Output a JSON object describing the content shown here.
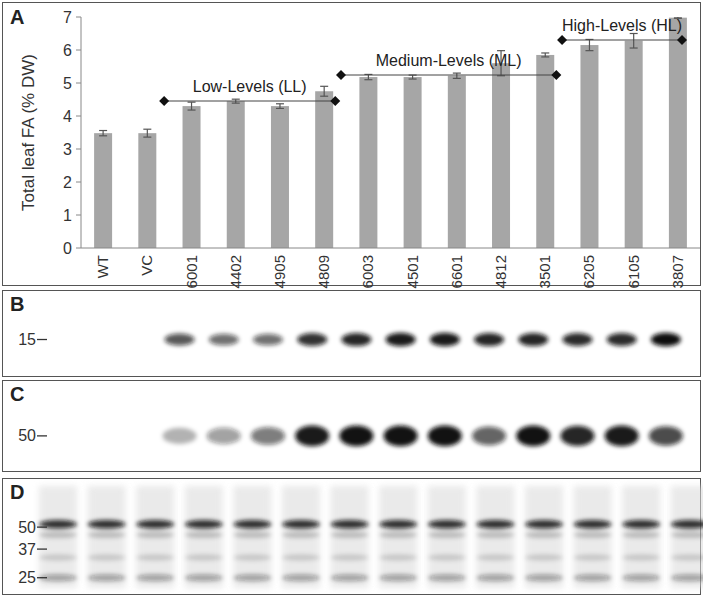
{
  "chart_data": {
    "type": "bar",
    "title": "A",
    "ylabel": "Total leaf FA (% DW)",
    "categories": [
      "WT",
      "VC",
      "6001",
      "4402",
      "4905",
      "4809",
      "6003",
      "4501",
      "6601",
      "4812",
      "3501",
      "6205",
      "6105",
      "3807"
    ],
    "values": [
      3.48,
      3.48,
      4.3,
      4.45,
      4.3,
      4.75,
      5.18,
      5.18,
      5.22,
      5.6,
      5.85,
      6.15,
      6.28,
      6.98
    ],
    "errors": [
      0.08,
      0.12,
      0.12,
      0.06,
      0.07,
      0.15,
      0.08,
      0.06,
      0.08,
      0.38,
      0.06,
      0.17,
      0.22,
      0.02
    ],
    "color": "#a6a6a6",
    "ylim": [
      0,
      7
    ],
    "yticks": [
      0,
      1,
      2,
      3,
      4,
      5,
      6,
      7
    ],
    "grid": false,
    "annotations": [
      {
        "text": "Low-Levels (LL)",
        "from": "6001",
        "to": "4809"
      },
      {
        "text": "Medium-Levels (ML)",
        "from": "6003",
        "to": "3501"
      },
      {
        "text": "High-Levels (HL)",
        "from": "6205",
        "to": "3807"
      }
    ]
  },
  "blots": [
    {
      "label": "B",
      "log": true,
      "ylim": [
        30,
        9
      ],
      "markers": [
        15
      ],
      "bands": [
        {
          "kda": 15,
          "intensity": [
            0,
            0,
            0.7,
            0.6,
            0.6,
            0.85,
            0.9,
            0.95,
            0.95,
            0.9,
            0.9,
            0.88,
            0.88,
            1.0
          ]
        }
      ]
    },
    {
      "label": "C",
      "log": true,
      "ylim": [
        107,
        31
      ],
      "markers": [
        50
      ],
      "bands": [
        {
          "kda": 50,
          "intensity": [
            0,
            0,
            0.3,
            0.4,
            0.55,
            0.95,
            0.98,
            0.98,
            0.98,
            0.65,
            0.98,
            0.9,
            0.95,
            0.75
          ]
        }
      ]
    },
    {
      "label": "D",
      "log": true,
      "ylim": [
        98,
        20
      ],
      "markers": [
        50,
        37,
        25
      ],
      "bands": [
        {
          "kda": 52,
          "intensity": [
            0.85,
            0.85,
            0.85,
            0.85,
            0.85,
            0.85,
            0.85,
            0.85,
            0.85,
            0.85,
            0.85,
            0.85,
            0.85,
            0.85
          ]
        },
        {
          "kda": 45,
          "intensity": [
            0.2,
            0.2,
            0.2,
            0.2,
            0.2,
            0.2,
            0.2,
            0.2,
            0.2,
            0.2,
            0.2,
            0.2,
            0.2,
            0.2
          ]
        },
        {
          "kda": 33,
          "intensity": [
            0.15,
            0.15,
            0.15,
            0.15,
            0.15,
            0.15,
            0.15,
            0.15,
            0.15,
            0.15,
            0.15,
            0.15,
            0.15,
            0.15
          ]
        },
        {
          "kda": 25,
          "intensity": [
            0.35,
            0.35,
            0.35,
            0.35,
            0.35,
            0.35,
            0.35,
            0.35,
            0.35,
            0.35,
            0.35,
            0.35,
            0.35,
            0.35
          ]
        }
      ]
    }
  ]
}
